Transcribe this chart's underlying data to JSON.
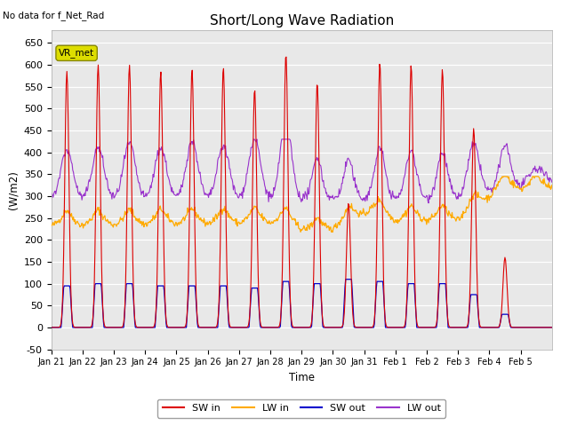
{
  "title": "Short/Long Wave Radiation",
  "subtitle": "No data for f_Net_Rad",
  "ylabel": "(W/m2)",
  "xlabel": "Time",
  "ylim": [
    -50,
    680
  ],
  "yticks": [
    -50,
    0,
    50,
    100,
    150,
    200,
    250,
    300,
    350,
    400,
    450,
    500,
    550,
    600,
    650
  ],
  "bg_color": "#e8e8e8",
  "fig_color": "#ffffff",
  "legend_label": "VR_met",
  "series_colors": {
    "SW_in": "#dd0000",
    "LW_in": "#ffaa00",
    "SW_out": "#0000cc",
    "LW_out": "#9933cc"
  },
  "n_days": 16,
  "day_labels": [
    "Jan 21",
    "Jan 22",
    "Jan 23",
    "Jan 24",
    "Jan 25",
    "Jan 26",
    "Jan 27",
    "Jan 28",
    "Jan 29",
    "Jan 30",
    "Jan 31",
    "Feb 1",
    "Feb 2",
    "Feb 3",
    "Feb 4",
    "Feb 5"
  ],
  "SW_in_peaks": [
    585,
    600,
    600,
    585,
    590,
    595,
    545,
    625,
    560,
    285,
    605,
    600,
    590,
    455,
    160,
    0
  ],
  "SW_out_peaks": [
    95,
    100,
    100,
    95,
    95,
    95,
    90,
    105,
    100,
    110,
    105,
    100,
    100,
    75,
    30,
    0
  ],
  "LW_in_base": 245,
  "LW_in_amplitude": 12,
  "LW_out_base": 310,
  "LW_out_amplitude": 15
}
